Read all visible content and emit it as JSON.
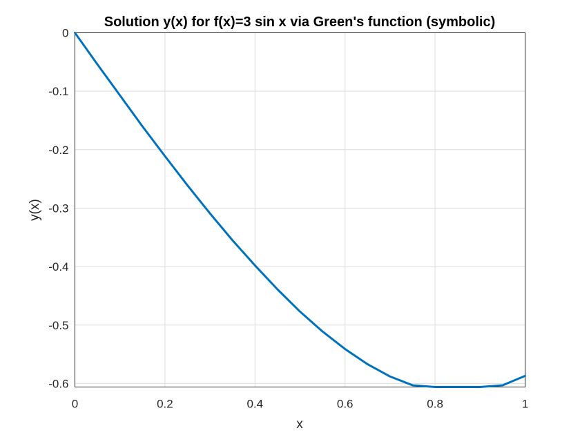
{
  "chart_data": {
    "type": "line",
    "title": "Solution y(x) for f(x)=3 sin x via Green's function (symbolic)",
    "xlabel": "x",
    "ylabel": "y(x)",
    "xlim": [
      0,
      1
    ],
    "ylim": [
      -0.606,
      0
    ],
    "xticks": [
      0,
      0.2,
      0.4,
      0.6,
      0.8,
      1
    ],
    "xtick_labels": [
      "0",
      "0.2",
      "0.4",
      "0.6",
      "0.8",
      "1"
    ],
    "yticks": [
      0,
      -0.1,
      -0.2,
      -0.3,
      -0.4,
      -0.5,
      -0.6
    ],
    "ytick_labels": [
      "0",
      "-0.1",
      "-0.2",
      "-0.3",
      "-0.4",
      "-0.5",
      "-0.6"
    ],
    "grid": true,
    "series": [
      {
        "color": "#0072bd",
        "x": [
          0,
          0.05,
          0.1,
          0.15,
          0.2,
          0.25,
          0.3,
          0.35,
          0.4,
          0.45,
          0.5,
          0.55,
          0.6,
          0.65,
          0.7,
          0.75,
          0.8,
          0.85,
          0.9,
          0.95,
          1.0
        ],
        "y": [
          0,
          -0.054,
          -0.107,
          -0.16,
          -0.211,
          -0.261,
          -0.309,
          -0.355,
          -0.398,
          -0.439,
          -0.477,
          -0.511,
          -0.541,
          -0.567,
          -0.588,
          -0.603,
          -0.613,
          -0.616,
          -0.613,
          -0.603,
          -0.587
        ]
      }
    ]
  }
}
